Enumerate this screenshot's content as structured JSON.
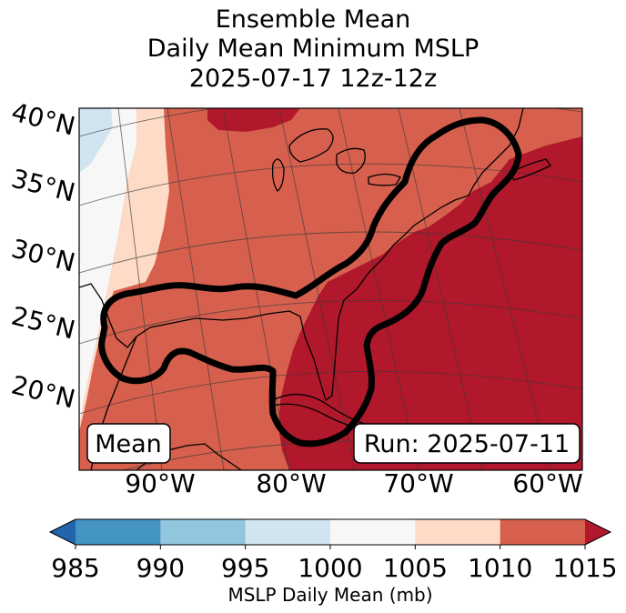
{
  "title": {
    "line1": "Ensemble Mean",
    "line2": "Daily Mean Minimum MSLP",
    "line3": "2025-07-17 12z-12z"
  },
  "map": {
    "lat_labels": [
      "40°N",
      "35°N",
      "30°N",
      "25°N",
      "20°N"
    ],
    "lon_labels": [
      "90°W",
      "80°W",
      "70°W",
      "60°W"
    ],
    "mean_box": "Mean",
    "run_box": "Run: 2025-07-11",
    "colors": {
      "c1000_1005": "#f7f7f7",
      "c995_1000": "#d1e5f0",
      "c1005_1010": "#fddbc7",
      "c1010_1015": "#d6604d",
      "c1015plus": "#b2182b"
    }
  },
  "colorbar": {
    "ticks": [
      "985",
      "990",
      "995",
      "1000",
      "1005",
      "1010",
      "1015"
    ],
    "label": "MSLP Daily Mean (mb)",
    "segment_colors": [
      "#4393c3",
      "#92c5de",
      "#d1e5f0",
      "#f7f7f7",
      "#fddbc7",
      "#d6604d"
    ],
    "under_color": "#2166ac",
    "over_color": "#b2182b"
  }
}
